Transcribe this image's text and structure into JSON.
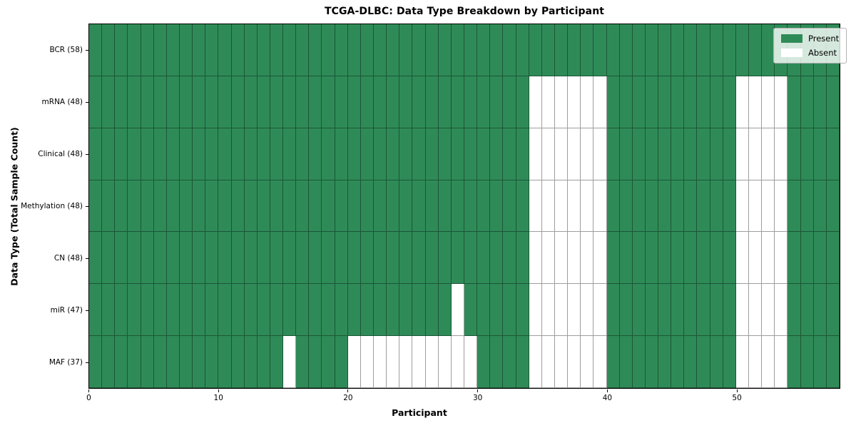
{
  "figure_title": "TCGA-DLBC: Data Type Breakdown by Participant",
  "chart_data": {
    "type": "heatmap",
    "title": "TCGA-DLBC: Data Type Breakdown by Participant",
    "xlabel": "Participant",
    "ylabel": "Data Type (Total Sample Count)",
    "x_range": [
      0,
      58
    ],
    "n_participants": 58,
    "x_ticks": [
      0,
      10,
      20,
      30,
      40,
      50
    ],
    "grid": true,
    "legend_position": "upper right",
    "colors": {
      "present": "#2e8b57",
      "absent": "#ffffff",
      "grid_line": "rgba(0,0,0,0.38)",
      "spine": "#000000"
    },
    "legend": [
      {
        "label": "Present",
        "color": "#2e8b57"
      },
      {
        "label": "Absent",
        "color": "#ffffff"
      }
    ],
    "rows": [
      {
        "label": "BCR (58)",
        "data_type": "BCR",
        "total": 58,
        "absent_participants": []
      },
      {
        "label": "mRNA (48)",
        "data_type": "mRNA",
        "total": 48,
        "absent_participants": [
          34,
          35,
          36,
          37,
          38,
          39,
          50,
          51,
          52,
          53
        ]
      },
      {
        "label": "Clinical (48)",
        "data_type": "Clinical",
        "total": 48,
        "absent_participants": [
          34,
          35,
          36,
          37,
          38,
          39,
          50,
          51,
          52,
          53
        ]
      },
      {
        "label": "Methylation (48)",
        "data_type": "Methylation",
        "total": 48,
        "absent_participants": [
          34,
          35,
          36,
          37,
          38,
          39,
          50,
          51,
          52,
          53
        ]
      },
      {
        "label": "CN (48)",
        "data_type": "CN",
        "total": 48,
        "absent_participants": [
          34,
          35,
          36,
          37,
          38,
          39,
          50,
          51,
          52,
          53
        ]
      },
      {
        "label": "miR (47)",
        "data_type": "miR",
        "total": 47,
        "absent_participants": [
          28,
          34,
          35,
          36,
          37,
          38,
          39,
          50,
          51,
          52,
          53
        ]
      },
      {
        "label": "MAF (37)",
        "data_type": "MAF",
        "total": 37,
        "absent_participants": [
          15,
          20,
          21,
          22,
          23,
          24,
          25,
          26,
          27,
          28,
          29,
          34,
          35,
          36,
          37,
          38,
          39,
          50,
          51,
          52,
          53
        ]
      }
    ]
  }
}
